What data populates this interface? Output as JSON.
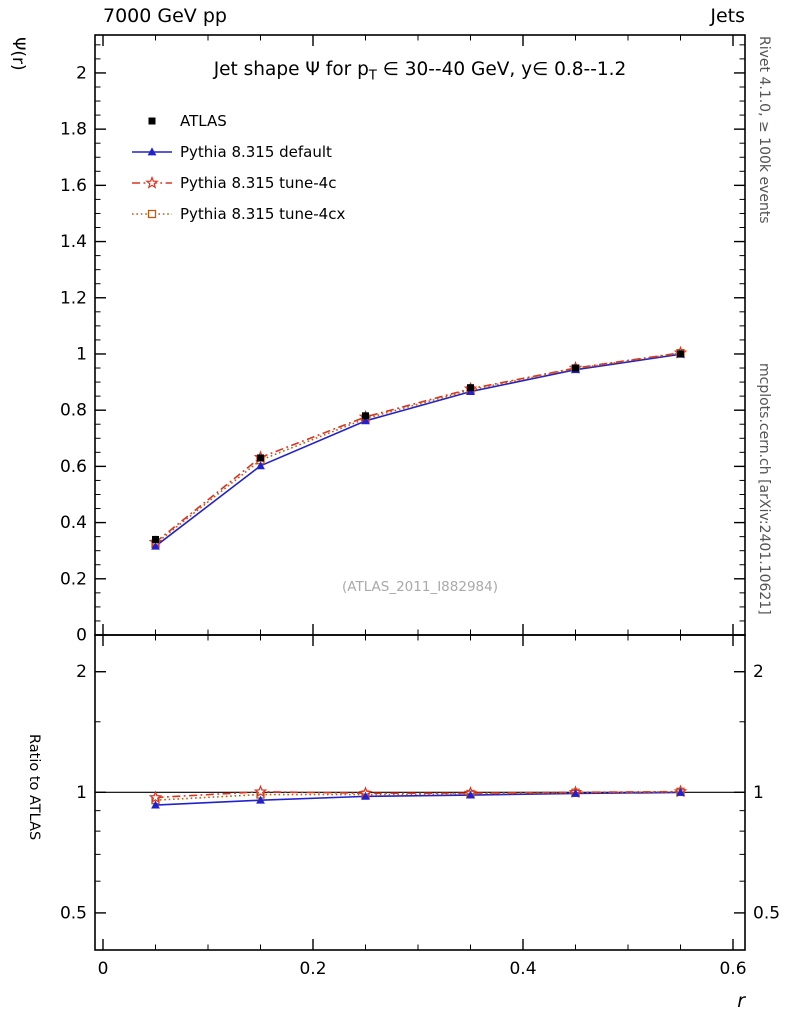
{
  "header": {
    "left": "7000 GeV pp",
    "right": "Jets"
  },
  "side_notes": {
    "top": "Rivet 4.1.0, ≥ 100k events",
    "bottom": "mcplots.cern.ch [arXiv:2401.10621]"
  },
  "watermark": "(ATLAS_2011_I882984)",
  "chart_data": {
    "type": "scatter",
    "title_parts": {
      "pre": "Jet shape Ψ for p",
      "sub": "T",
      "post": " ∈ 30--40 GeV, y∈ 0.8--1.2"
    },
    "xlabel": "r",
    "ylabel": "Ψ(r)",
    "ratio_ylabel": "Ratio to ATLAS",
    "x": [
      0.05,
      0.15,
      0.25,
      0.35,
      0.45,
      0.55
    ],
    "xlim": [
      0,
      0.6
    ],
    "ylim": [
      0,
      2.135
    ],
    "ratio_ylim": [
      0.404,
      2.47
    ],
    "ratio_scale": "log",
    "grid": false,
    "legend_position": "top-left",
    "x_major_ticks": [
      0,
      0.2,
      0.4,
      0.6
    ],
    "x_minor_step": 0.05,
    "y_minor_step": 0.05,
    "ratio_ticks": [
      0.5,
      1,
      2
    ],
    "ratio_minor_ticks": [
      0.6,
      0.7,
      0.8,
      0.9,
      1.5
    ],
    "series": [
      {
        "name": "ATLAS",
        "color": "#000000",
        "marker": "square-filled",
        "line": "none",
        "values": [
          0.34,
          0.63,
          0.78,
          0.88,
          0.95,
          1.0
        ]
      },
      {
        "name": "Pythia 8.315 default",
        "color": "#2222cc",
        "marker": "triangle-filled",
        "line": "solid",
        "values": [
          0.316,
          0.602,
          0.762,
          0.866,
          0.944,
          0.999
        ]
      },
      {
        "name": "Pythia 8.315 tune-4c",
        "color": "#dd3322",
        "marker": "star-open",
        "line": "dashdot",
        "values": [
          0.33,
          0.632,
          0.776,
          0.876,
          0.95,
          1.004
        ]
      },
      {
        "name": "Pythia 8.315 tune-4cx",
        "color": "#c05a10",
        "marker": "square-open",
        "line": "dotted",
        "values": [
          0.325,
          0.622,
          0.77,
          0.872,
          0.948,
          1.003
        ]
      }
    ]
  }
}
